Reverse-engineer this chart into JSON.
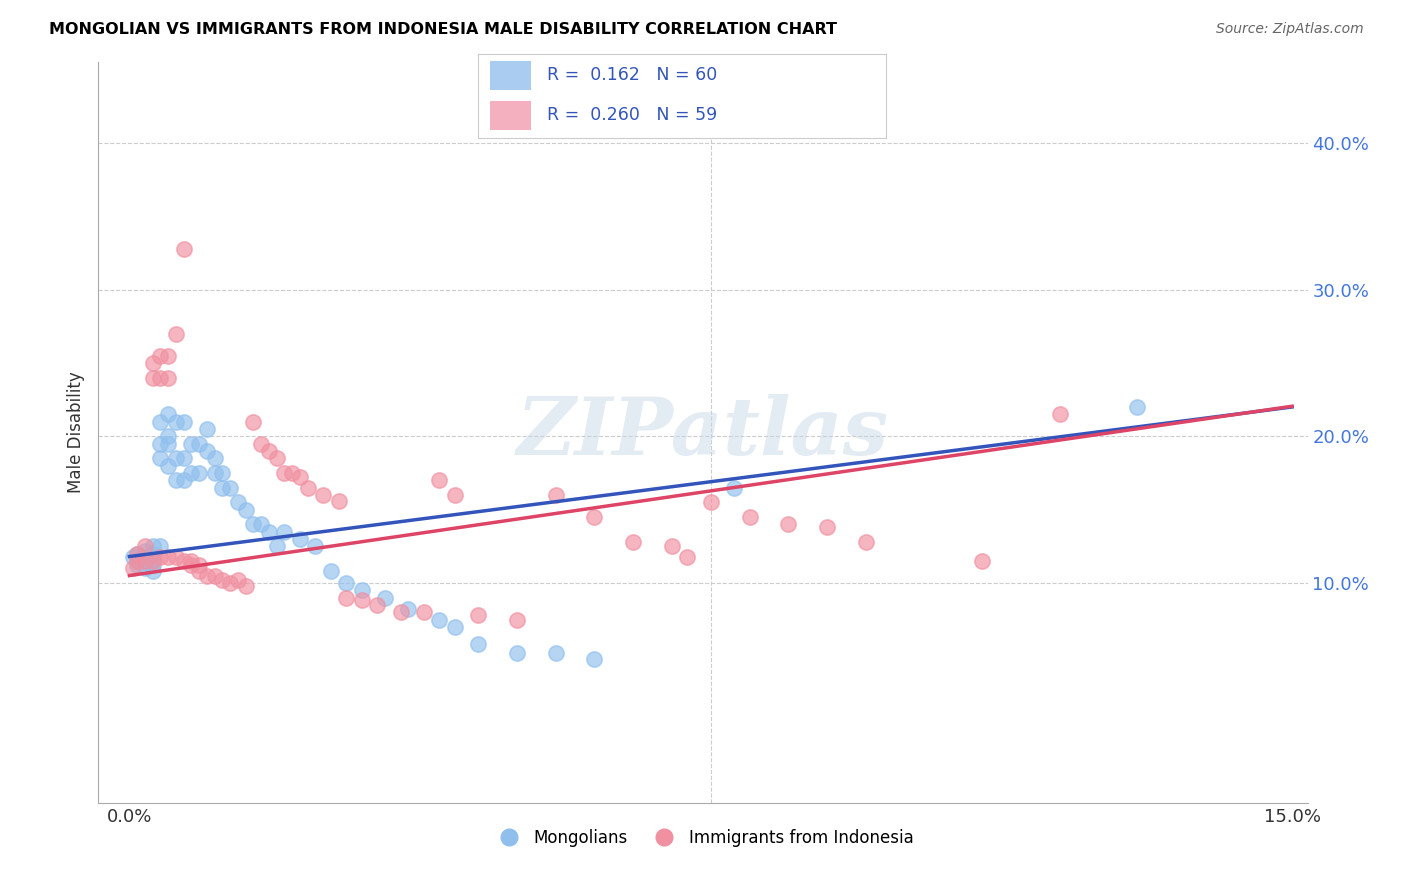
{
  "title": "MONGOLIAN VS IMMIGRANTS FROM INDONESIA MALE DISABILITY CORRELATION CHART",
  "source": "Source: ZipAtlas.com",
  "ylabel": "Male Disability",
  "watermark": "ZIPatlas",
  "blue_R": 0.162,
  "blue_N": 60,
  "pink_R": 0.26,
  "pink_N": 59,
  "xlim": [
    0.0,
    0.15
  ],
  "ylim": [
    0.0,
    0.45
  ],
  "x_tick_left": "0.0%",
  "x_tick_right": "15.0%",
  "y_ticks": [
    0.1,
    0.2,
    0.3,
    0.4
  ],
  "y_tick_labels": [
    "10.0%",
    "20.0%",
    "30.0%",
    "40.0%"
  ],
  "blue_intercept": 0.118,
  "blue_slope": 0.68,
  "pink_intercept": 0.105,
  "pink_slope": 0.77,
  "blue_scatter_x": [
    0.0005,
    0.001,
    0.001,
    0.001,
    0.002,
    0.002,
    0.002,
    0.002,
    0.003,
    0.003,
    0.003,
    0.003,
    0.003,
    0.004,
    0.004,
    0.004,
    0.004,
    0.005,
    0.005,
    0.005,
    0.005,
    0.006,
    0.006,
    0.006,
    0.007,
    0.007,
    0.007,
    0.008,
    0.008,
    0.009,
    0.009,
    0.01,
    0.01,
    0.011,
    0.011,
    0.012,
    0.012,
    0.013,
    0.014,
    0.015,
    0.016,
    0.017,
    0.018,
    0.019,
    0.02,
    0.022,
    0.024,
    0.026,
    0.028,
    0.03,
    0.033,
    0.036,
    0.04,
    0.042,
    0.045,
    0.05,
    0.055,
    0.06,
    0.078,
    0.13
  ],
  "blue_scatter_y": [
    0.118,
    0.12,
    0.115,
    0.112,
    0.122,
    0.118,
    0.114,
    0.11,
    0.125,
    0.12,
    0.116,
    0.112,
    0.108,
    0.21,
    0.195,
    0.185,
    0.125,
    0.2,
    0.195,
    0.18,
    0.215,
    0.21,
    0.185,
    0.17,
    0.21,
    0.185,
    0.17,
    0.195,
    0.175,
    0.195,
    0.175,
    0.205,
    0.19,
    0.185,
    0.175,
    0.175,
    0.165,
    0.165,
    0.155,
    0.15,
    0.14,
    0.14,
    0.135,
    0.125,
    0.135,
    0.13,
    0.125,
    0.108,
    0.1,
    0.095,
    0.09,
    0.082,
    0.075,
    0.07,
    0.058,
    0.052,
    0.052,
    0.048,
    0.165,
    0.22
  ],
  "pink_scatter_x": [
    0.0005,
    0.001,
    0.001,
    0.002,
    0.002,
    0.003,
    0.003,
    0.003,
    0.004,
    0.004,
    0.004,
    0.005,
    0.005,
    0.005,
    0.006,
    0.006,
    0.007,
    0.007,
    0.008,
    0.008,
    0.009,
    0.009,
    0.01,
    0.011,
    0.012,
    0.013,
    0.014,
    0.015,
    0.016,
    0.017,
    0.018,
    0.019,
    0.02,
    0.021,
    0.022,
    0.023,
    0.025,
    0.027,
    0.028,
    0.03,
    0.032,
    0.035,
    0.038,
    0.04,
    0.042,
    0.045,
    0.05,
    0.055,
    0.06,
    0.065,
    0.07,
    0.072,
    0.075,
    0.08,
    0.085,
    0.09,
    0.095,
    0.11,
    0.12
  ],
  "pink_scatter_y": [
    0.11,
    0.12,
    0.115,
    0.125,
    0.115,
    0.25,
    0.24,
    0.115,
    0.255,
    0.24,
    0.118,
    0.255,
    0.24,
    0.118,
    0.27,
    0.118,
    0.328,
    0.115,
    0.115,
    0.112,
    0.112,
    0.108,
    0.105,
    0.105,
    0.102,
    0.1,
    0.102,
    0.098,
    0.21,
    0.195,
    0.19,
    0.185,
    0.175,
    0.175,
    0.172,
    0.165,
    0.16,
    0.156,
    0.09,
    0.088,
    0.085,
    0.08,
    0.08,
    0.17,
    0.16,
    0.078,
    0.075,
    0.16,
    0.145,
    0.128,
    0.125,
    0.118,
    0.155,
    0.145,
    0.14,
    0.138,
    0.128,
    0.115,
    0.215
  ],
  "blue_color": "#90BFEE",
  "pink_color": "#F090A0",
  "blue_line_color": "#3355BB",
  "pink_line_color": "#DD4466",
  "legend_blue_patch": "#AACCF0",
  "legend_pink_patch": "#F5B0C0",
  "legend_text_color": "#3355BB"
}
